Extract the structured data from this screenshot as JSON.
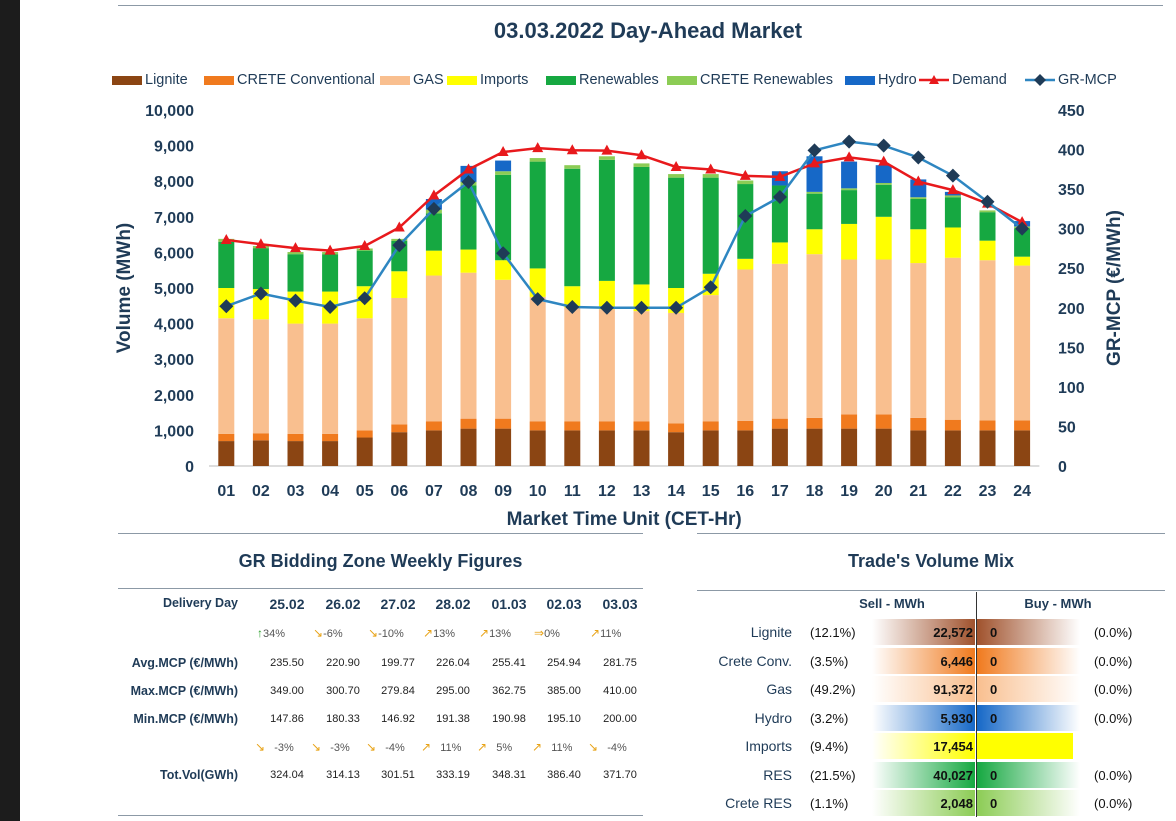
{
  "chart_data": {
    "type": "bar",
    "stacked": true,
    "title": "03.03.2022  Day-Ahead Market",
    "xlabel": "Market Time Unit (CET-Hr)",
    "ylabel": "Volume (MWh)",
    "y2label": "GR-MCP (€/MWh)",
    "ylim": [
      0,
      10000
    ],
    "y2lim": [
      0,
      450
    ],
    "yticks": [
      "0",
      "1,000",
      "2,000",
      "3,000",
      "4,000",
      "5,000",
      "6,000",
      "7,000",
      "8,000",
      "9,000",
      "10,000"
    ],
    "y2ticks": [
      "0",
      "50",
      "100",
      "150",
      "200",
      "250",
      "300",
      "350",
      "400",
      "450"
    ],
    "categories": [
      "01",
      "02",
      "03",
      "04",
      "05",
      "06",
      "07",
      "08",
      "09",
      "10",
      "11",
      "12",
      "13",
      "14",
      "15",
      "16",
      "17",
      "18",
      "19",
      "20",
      "21",
      "22",
      "23",
      "24"
    ],
    "series": [
      {
        "name": "Lignite",
        "color": "#8b4513",
        "values": [
          700,
          720,
          700,
          700,
          800,
          950,
          1000,
          1050,
          1050,
          1000,
          1000,
          1000,
          1000,
          950,
          1000,
          1000,
          1050,
          1050,
          1050,
          1050,
          1000,
          1000,
          1000,
          1000
        ]
      },
      {
        "name": "CRETE Conventional",
        "color": "#f07a1e",
        "values": [
          200,
          200,
          200,
          200,
          200,
          220,
          250,
          280,
          280,
          250,
          250,
          250,
          250,
          250,
          250,
          270,
          280,
          300,
          400,
          400,
          350,
          300,
          280,
          280
        ]
      },
      {
        "name": "GAS",
        "color": "#f9bf8f",
        "values": [
          3250,
          3200,
          3100,
          3100,
          3150,
          3550,
          4100,
          4100,
          3900,
          3500,
          3200,
          3150,
          3100,
          3100,
          3550,
          4250,
          4350,
          4600,
          4350,
          4350,
          4350,
          4550,
          4500,
          4350
        ]
      },
      {
        "name": "Imports",
        "color": "#ffff00",
        "values": [
          850,
          850,
          900,
          900,
          900,
          750,
          700,
          650,
          550,
          800,
          600,
          800,
          750,
          700,
          600,
          300,
          600,
          700,
          1000,
          1200,
          950,
          850,
          550,
          250
        ]
      },
      {
        "name": "Renewables",
        "color": "#16a841",
        "values": [
          1300,
          1150,
          1050,
          1050,
          1000,
          850,
          1050,
          1800,
          2400,
          3000,
          3300,
          3400,
          3300,
          3100,
          2700,
          2100,
          1600,
          1000,
          950,
          900,
          850,
          850,
          800,
          800
        ]
      },
      {
        "name": "CRETE Renewables",
        "color": "#8ccc55",
        "values": [
          80,
          60,
          60,
          60,
          60,
          60,
          100,
          100,
          100,
          100,
          100,
          100,
          100,
          100,
          100,
          100,
          0,
          50,
          50,
          50,
          50,
          50,
          50,
          50
        ]
      },
      {
        "name": "Hydro",
        "color": "#1668c7",
        "values": [
          0,
          0,
          0,
          0,
          0,
          0,
          300,
          450,
          300,
          0,
          0,
          0,
          0,
          0,
          0,
          0,
          400,
          1000,
          750,
          500,
          500,
          100,
          0,
          150
        ]
      }
    ],
    "lines": [
      {
        "name": "Demand",
        "color": "#e8191c",
        "axis": "left",
        "values": [
          6350,
          6230,
          6120,
          6050,
          6180,
          6700,
          7600,
          8330,
          8820,
          8930,
          8870,
          8860,
          8730,
          8400,
          8330,
          8150,
          8120,
          8500,
          8670,
          8550,
          7990,
          7750,
          7370,
          6850
        ]
      },
      {
        "name": "GR-MCP",
        "color": "#1f3b57",
        "linecolor": "#2e86c1",
        "axis": "right",
        "values": [
          202,
          218,
          209,
          201,
          212,
          279,
          325,
          359,
          269,
          211,
          201,
          200,
          200,
          200,
          226,
          316,
          340,
          399,
          410,
          405,
          390,
          367,
          334,
          300
        ]
      }
    ]
  },
  "weekly": {
    "title": "GR Bidding Zone Weekly Figures",
    "header_label": "Delivery Day",
    "dates": [
      "25.02",
      "26.02",
      "27.02",
      "28.02",
      "01.03",
      "02.03",
      "03.03"
    ],
    "avg_changes": [
      {
        "arrow": "↑",
        "color": "#2ca02c",
        "text": "34%"
      },
      {
        "arrow": "↘",
        "color": "#e8a317",
        "text": "-6%"
      },
      {
        "arrow": "↘",
        "color": "#e8a317",
        "text": "-10%"
      },
      {
        "arrow": "↗",
        "color": "#e8a317",
        "text": "13%"
      },
      {
        "arrow": "↗",
        "color": "#e8a317",
        "text": "13%"
      },
      {
        "arrow": "⇒",
        "color": "#e8a317",
        "text": "0%"
      },
      {
        "arrow": "↗",
        "color": "#e8a317",
        "text": "11%"
      }
    ],
    "rows": [
      {
        "label": "Avg.MCP (€/MWh)",
        "values": [
          "235.50",
          "220.90",
          "199.77",
          "226.04",
          "255.41",
          "254.94",
          "281.75"
        ]
      },
      {
        "label": "Max.MCP (€/MWh)",
        "values": [
          "349.00",
          "300.70",
          "279.84",
          "295.00",
          "362.75",
          "385.00",
          "410.00"
        ]
      },
      {
        "label": "Min.MCP (€/MWh)",
        "values": [
          "147.86",
          "180.33",
          "146.92",
          "191.38",
          "190.98",
          "195.10",
          "200.00"
        ]
      }
    ],
    "vol_changes": [
      {
        "arrow": "↘",
        "color": "#e8a317",
        "text": "-3%"
      },
      {
        "arrow": "↘",
        "color": "#e8a317",
        "text": "-3%"
      },
      {
        "arrow": "↘",
        "color": "#e8a317",
        "text": "-4%"
      },
      {
        "arrow": "↗",
        "color": "#e8a317",
        "text": "11%"
      },
      {
        "arrow": "↗",
        "color": "#e8a317",
        "text": "5%"
      },
      {
        "arrow": "↗",
        "color": "#e8a317",
        "text": "11%"
      },
      {
        "arrow": "↘",
        "color": "#e8a317",
        "text": "-4%"
      }
    ],
    "vol_row": {
      "label": "Tot.Vol(GWh)",
      "values": [
        "324.04",
        "314.13",
        "301.51",
        "333.19",
        "348.31",
        "386.40",
        "371.70"
      ]
    }
  },
  "mix": {
    "title": "Trade's Volume Mix",
    "sell_header": "Sell - MWh",
    "buy_header": "Buy - MWh",
    "rows": [
      {
        "label": "Lignite",
        "pct": "(12.1%)",
        "sell": "22,572",
        "buy": "0",
        "buy_pct": "(0.0%)",
        "color": "#a0522d"
      },
      {
        "label": "Crete Conv.",
        "pct": "(3.5%)",
        "sell": "6,446",
        "buy": "0",
        "buy_pct": "(0.0%)",
        "color": "#f07a1e"
      },
      {
        "label": "Gas",
        "pct": "(49.2%)",
        "sell": "91,372",
        "buy": "0",
        "buy_pct": "(0.0%)",
        "color": "#f9bf8f"
      },
      {
        "label": "Hydro",
        "pct": "(3.2%)",
        "sell": "5,930",
        "buy": "0",
        "buy_pct": "(0.0%)",
        "color": "#1668c7"
      },
      {
        "label": "Imports",
        "pct": "(9.4%)",
        "sell": "17,454",
        "buy": "",
        "buy_pct": "",
        "color": "#ffff00"
      },
      {
        "label": "RES",
        "pct": "(21.5%)",
        "sell": "40,027",
        "buy": "0",
        "buy_pct": "(0.0%)",
        "color": "#16a841"
      },
      {
        "label": "Crete RES",
        "pct": "(1.1%)",
        "sell": "2,048",
        "buy": "0",
        "buy_pct": "(0.0%)",
        "color": "#8ccc55"
      }
    ]
  }
}
